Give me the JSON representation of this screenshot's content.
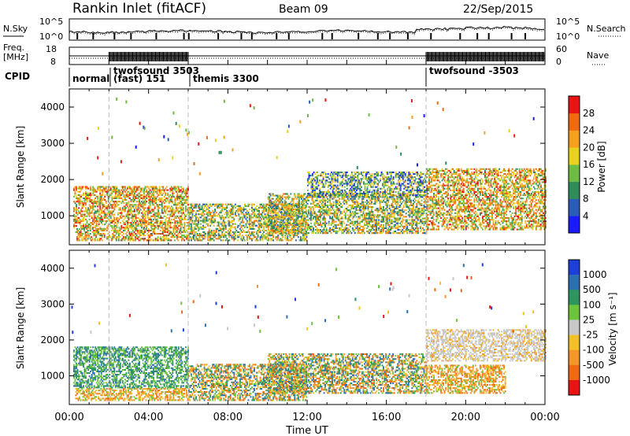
{
  "header": {
    "station": "Rankin Inlet (fitACF)",
    "beam": "Beam 09",
    "date": "22/Sep/2015"
  },
  "strips": {
    "nsky_label": "N.Sky",
    "nsky_top": "10^5",
    "nsky_bottom": "10^0",
    "nsearch_label": "N.Search",
    "freq_label": "Freq.",
    "freq_unit": "[MHz]",
    "freq_top": "18",
    "freq_bottom": "8",
    "nave_label": "Nave",
    "nave_top": "60",
    "nave_bottom": "0",
    "cpid_label": "CPID",
    "cpid_modes": [
      {
        "name": "normal",
        "start_hour": 0,
        "end_hour": 2
      },
      {
        "name": "twofsound 3503",
        "start_hour": 2,
        "end_hour": 6
      },
      {
        "name": "(fast) 151",
        "start_hour": 2,
        "end_hour": 6
      },
      {
        "name": "themis 3300",
        "start_hour": 6,
        "end_hour": 18
      },
      {
        "name": "twofsound -3503",
        "start_hour": 18,
        "end_hour": 24
      }
    ]
  },
  "chart_data": [
    {
      "type": "heatmap",
      "panel": "power",
      "xlabel": "",
      "ylabel": "Slant Range [km]",
      "ylim": [
        200,
        4500
      ],
      "y_ticks": [
        1000,
        2000,
        3000,
        4000
      ],
      "x_range_hours": [
        0,
        24
      ],
      "colorbar_label": "Power [dB]",
      "colorbar_ticks": [
        "4",
        "8",
        "12",
        "16",
        "20",
        "24",
        "28"
      ],
      "colorbar_colors": [
        "#1a1aff",
        "#2a5cb8",
        "#2f8c5a",
        "#6dbd45",
        "#e8d21e",
        "#f5a020",
        "#f06a10",
        "#e81414"
      ],
      "mode_boundaries_hours": [
        2,
        6,
        18
      ],
      "echo_regions": [
        {
          "t_start": 0.2,
          "t_end": 6.0,
          "range_min": 650,
          "range_max": 1800,
          "level": "high"
        },
        {
          "t_start": 0.3,
          "t_end": 6.0,
          "range_min": 300,
          "range_max": 620,
          "level": "high"
        },
        {
          "t_start": 6.0,
          "t_end": 12.0,
          "range_min": 300,
          "range_max": 1300,
          "level": "medium"
        },
        {
          "t_start": 10.0,
          "t_end": 18.0,
          "range_min": 500,
          "range_max": 1600,
          "level": "medium"
        },
        {
          "t_start": 12.0,
          "t_end": 18.0,
          "range_min": 1500,
          "range_max": 2200,
          "level": "low"
        },
        {
          "t_start": 18.0,
          "t_end": 24.0,
          "range_min": 600,
          "range_max": 2300,
          "level": "high"
        }
      ]
    },
    {
      "type": "heatmap",
      "panel": "velocity",
      "xlabel": "Time UT",
      "ylabel": "Slant Range [km]",
      "ylim": [
        200,
        4500
      ],
      "y_ticks": [
        1000,
        2000,
        3000,
        4000
      ],
      "x_ticks": [
        "00:00",
        "04:00",
        "08:00",
        "12:00",
        "16:00",
        "20:00",
        "00:00"
      ],
      "x_range_hours": [
        0,
        24
      ],
      "colorbar_label": "Velocity [m s⁻¹]",
      "colorbar_ticks": [
        "1000",
        "500",
        "100",
        "25",
        "-25",
        "-100",
        "-500",
        "-1000"
      ],
      "colorbar_colors": [
        "#1c3fd8",
        "#2c6fb0",
        "#2f9460",
        "#6cc33c",
        "#c8c8c8",
        "#f2c02a",
        "#f5962a",
        "#f06a14",
        "#e81414"
      ],
      "mode_boundaries_hours": [
        2,
        6,
        18
      ],
      "echo_regions": [
        {
          "t_start": 0.2,
          "t_end": 6.0,
          "range_min": 650,
          "range_max": 1800,
          "level": "away"
        },
        {
          "t_start": 0.3,
          "t_end": 6.0,
          "range_min": 300,
          "range_max": 620,
          "level": "toward"
        },
        {
          "t_start": 6.0,
          "t_end": 12.0,
          "range_min": 300,
          "range_max": 1300,
          "level": "mixed"
        },
        {
          "t_start": 10.0,
          "t_end": 18.0,
          "range_min": 500,
          "range_max": 1600,
          "level": "mixed"
        },
        {
          "t_start": 18.0,
          "t_end": 24.0,
          "range_min": 1400,
          "range_max": 2300,
          "level": "ground"
        },
        {
          "t_start": 18.0,
          "t_end": 22.0,
          "range_min": 500,
          "range_max": 1300,
          "level": "toward"
        }
      ]
    }
  ]
}
